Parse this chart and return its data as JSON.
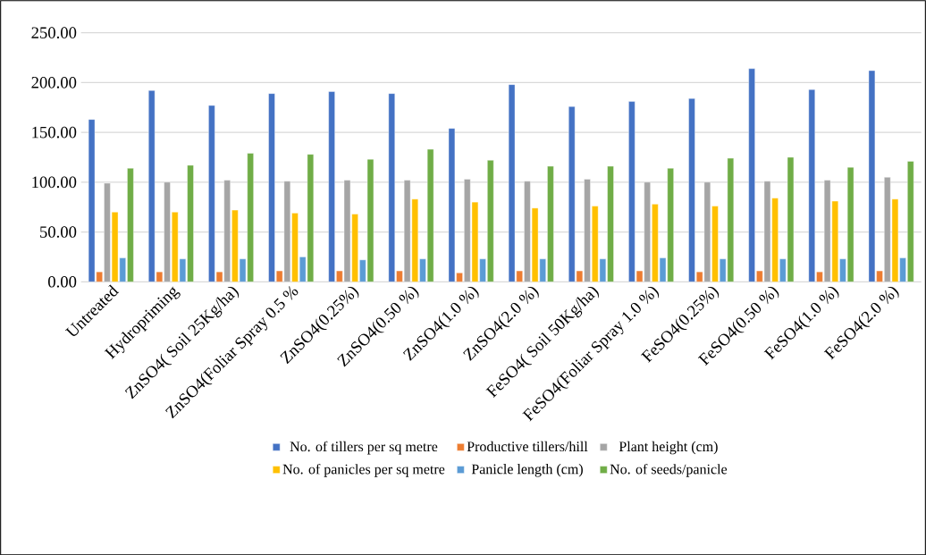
{
  "chart_data": {
    "type": "bar",
    "categories": [
      "Untreated",
      "Hydropriming",
      "ZnSO4( Soil 25Kg/ha)",
      "ZnSO4(Foliar Spray 0.5 %",
      "ZnSO4(0.25%)",
      "ZnSO4(0.50 %)",
      "ZnSO4(1.0 %)",
      "ZnSO4(2.0 %)",
      "FeSO4( Soil 50Kg/ha)",
      "FeSO4(Foliar Spray 1.0 %)",
      "FeSO4(0.25%)",
      "FeSO4(0.50 %)",
      "FeSO4(1.0 %)",
      "FeSO4(2.0 %)"
    ],
    "series": [
      {
        "name": "No. of tillers per sq metre",
        "color": "#4472c4",
        "values": [
          163,
          192,
          177,
          189,
          191,
          189,
          154,
          198,
          176,
          181,
          184,
          214,
          193,
          212
        ]
      },
      {
        "name": "Productive tillers/hill",
        "color": "#ed7d31",
        "values": [
          10,
          10,
          10,
          11,
          11,
          11,
          9,
          11,
          11,
          11,
          10,
          11,
          10,
          11
        ]
      },
      {
        "name": "Plant height (cm)",
        "color": "#a5a5a5",
        "values": [
          99,
          100,
          102,
          101,
          102,
          102,
          103,
          101,
          103,
          100,
          100,
          101,
          102,
          105
        ]
      },
      {
        "name": "No. of panicles per sq metre",
        "color": "#ffc000",
        "values": [
          70,
          70,
          72,
          69,
          68,
          83,
          80,
          74,
          76,
          78,
          76,
          84,
          81,
          83
        ]
      },
      {
        "name": "Panicle length (cm)",
        "color": "#5b9bd5",
        "values": [
          24,
          23,
          23,
          25,
          22,
          23,
          23,
          23,
          23,
          24,
          23,
          23,
          23,
          24
        ]
      },
      {
        "name": "No. of seeds/panicle",
        "color": "#70ad47",
        "values": [
          114,
          117,
          129,
          128,
          123,
          133,
          122,
          116,
          116,
          114,
          124,
          125,
          115,
          121
        ]
      }
    ],
    "ylim": [
      0,
      250
    ],
    "yticks": [
      {
        "value": 0,
        "label": "0.00"
      },
      {
        "value": 50,
        "label": "50.00"
      },
      {
        "value": 100,
        "label": "100.00"
      },
      {
        "value": 150,
        "label": "150.00"
      },
      {
        "value": 200,
        "label": "200.00"
      },
      {
        "value": 250,
        "label": "250.00"
      }
    ],
    "grid": "y",
    "legend": "bottom"
  }
}
